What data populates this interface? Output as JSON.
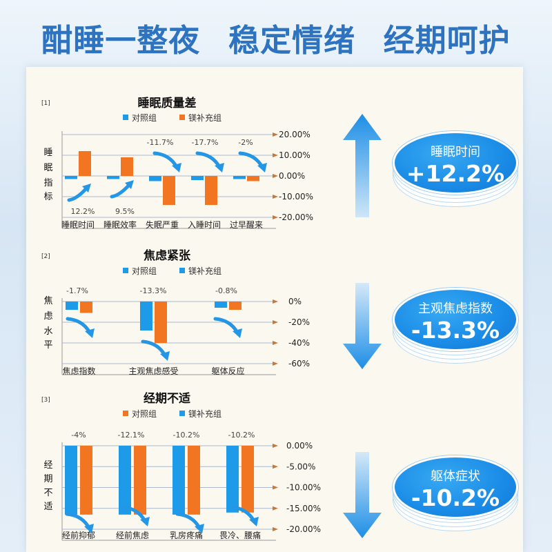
{
  "headline": [
    "酣睡一整夜",
    "稳定情绪",
    "经期呵护"
  ],
  "colors": {
    "control": "#1e9be8",
    "mg": "#f27521",
    "axis": "#c7783a",
    "capsule": "#1a8be6",
    "arrow": "#2496e6"
  },
  "callouts": [
    {
      "label": "睡眠时间",
      "value": "+12.2%"
    },
    {
      "label": "主观焦虑指数",
      "value": "-13.3%"
    },
    {
      "label": "躯体症状",
      "value": "-10.2%"
    }
  ],
  "chart_data": [
    {
      "type": "bar",
      "ref": "[1]",
      "title": "睡眠质量差",
      "ylabel": "睡眠指标",
      "legend": [
        "对照组",
        "镁补充组"
      ],
      "categories": [
        "睡眠时间",
        "睡眠效率",
        "失眠严重",
        "入睡时间",
        "过早醒来"
      ],
      "series": [
        {
          "name": "对照组",
          "values": [
            -1.5,
            -1.5,
            -2.5,
            -2,
            -1.5
          ]
        },
        {
          "name": "镁补充组",
          "values": [
            12,
            9,
            -14,
            -14,
            -2.5
          ]
        }
      ],
      "yticks": [
        "20.00%",
        "10.00%",
        "0.00%",
        "-10.00%",
        "-20.00%"
      ],
      "ylim": [
        -20,
        20
      ],
      "annotations": [
        "12.2%",
        "9.5%",
        "-11.7%",
        "-17.7%",
        "-2%"
      ]
    },
    {
      "type": "bar",
      "ref": "[2]",
      "title": "焦虑紧张",
      "ylabel": "焦虑水平",
      "legend": [
        "对照组",
        "镁补充组"
      ],
      "categories": [
        "焦虑指数",
        "主观焦虑感受",
        "躯体反应"
      ],
      "series": [
        {
          "name": "对照组",
          "values": [
            -8,
            -28,
            -6
          ]
        },
        {
          "name": "镁补充组",
          "values": [
            -11,
            -40,
            -8
          ]
        }
      ],
      "yticks": [
        "0%",
        "-20%",
        "-40%",
        "-60%"
      ],
      "ylim": [
        -60,
        0
      ],
      "annotations": [
        "-1.7%",
        "-13.3%",
        "-0.8%"
      ]
    },
    {
      "type": "bar",
      "ref": "[3]",
      "title": "经期不适",
      "ylabel": "经期不适",
      "legend": [
        "对照组",
        "镁补充组"
      ],
      "categories": [
        "经前抑郁",
        "经前焦虑",
        "乳房疼痛",
        "畏冷、腰痛"
      ],
      "series": [
        {
          "name": "对照组",
          "values": [
            -16.5,
            -16.5,
            -16.5,
            -16
          ]
        },
        {
          "name": "镁补充组",
          "values": [
            -16.5,
            -16.5,
            -16.5,
            -16
          ]
        }
      ],
      "yticks": [
        "0.00%",
        "-5.00%",
        "-10.00%",
        "-15.00%",
        "-20.00%"
      ],
      "ylim": [
        -20,
        0
      ],
      "annotations": [
        "-4%",
        "-12.1%",
        "-10.2%",
        "-10.2%"
      ]
    }
  ]
}
